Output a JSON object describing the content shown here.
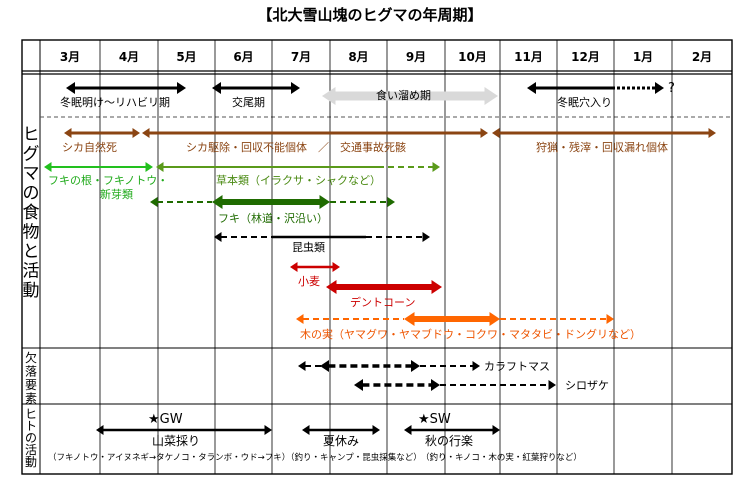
{
  "title": "【北大雪山塊のヒグマの年周期】",
  "months": [
    "3月",
    "4月",
    "5月",
    "6月",
    "7月",
    "8月",
    "9月",
    "10月",
    "11月",
    "12月",
    "1月",
    "2月"
  ],
  "sections": {
    "food": "ヒグマの食物と活動",
    "missing": "欠落要素",
    "human": "ヒトの活動"
  },
  "colors": {
    "black": "#000000",
    "gray": "#d9d9d9",
    "brown": "#8b4513",
    "green_light": "#22c01e",
    "green_mid": "#5a9a1a",
    "green_dark": "#1f6b00",
    "red": "#cc0000",
    "orange": "#ff6600",
    "text_brown": "#8b4513",
    "text_red": "#cc0000"
  },
  "rows": {
    "hibernation_exit": "冬眠明け～リハビリ期",
    "mating": "交尾期",
    "hyperphagia": "食い溜め期",
    "den_entry": "冬眠穴入り",
    "question": "?",
    "deer_natural": "シカ自然死",
    "deer_culled": "シカ駆除・回収不能個体　／　交通事故死骸",
    "deer_hunting": "狩猟・残滓・回収漏れ個体",
    "fuki_roots": "フキの根・フキノトウ・",
    "new_buds": "新芽類",
    "herbs": "草本類（イラクサ・シャクなど）",
    "fuki_forest": "フキ（林道・沢沿い）",
    "insects": "昆虫類",
    "wheat": "小麦",
    "dent_corn": "デントコーン",
    "nuts": "木の実（ヤマグワ・ヤマブドウ・コクワ・マタタビ・ドングリなど）",
    "pink_salmon": "カラフトマス",
    "chum_salmon": "シロザケ",
    "gw": "★GW",
    "wild_veg": "山菜採り",
    "wild_veg_detail": "（フキノトウ・アイヌネギ→タケノコ・タランボ・ウド→フキ）",
    "summer": "夏休み",
    "summer_detail": "（釣り・キャンプ・昆虫採集など）",
    "sw": "★SW",
    "autumn": "秋の行楽",
    "autumn_detail": "（釣り・キノコ・木の実・紅葉狩りなど）"
  }
}
